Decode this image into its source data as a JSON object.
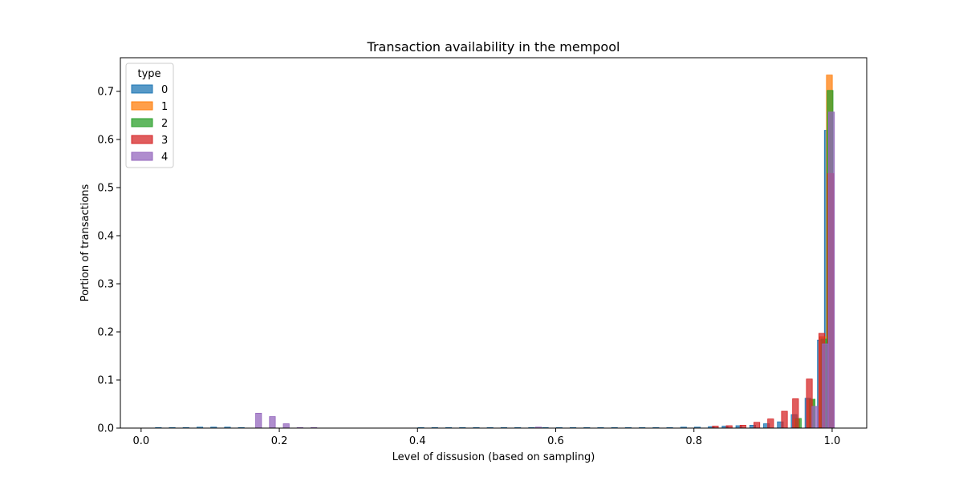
{
  "chart_data": {
    "type": "bar",
    "title": "Transaction availability in the mempool",
    "xlabel": "Level of dissusion (based on sampling)",
    "ylabel": "Portion of transactions",
    "xlim": [
      -0.03,
      1.05
    ],
    "ylim": [
      0,
      0.77
    ],
    "xticks": [
      0.0,
      0.2,
      0.4,
      0.6,
      0.8,
      1.0
    ],
    "xtick_labels": [
      "0.0",
      "0.2",
      "0.4",
      "0.6",
      "0.8",
      "1.0"
    ],
    "yticks": [
      0.0,
      0.1,
      0.2,
      0.3,
      0.4,
      0.5,
      0.6,
      0.7
    ],
    "ytick_labels": [
      "0.0",
      "0.1",
      "0.2",
      "0.3",
      "0.4",
      "0.5",
      "0.6",
      "0.7"
    ],
    "grid": false,
    "legend": {
      "title": "type",
      "placement": "top-left"
    },
    "series": [
      {
        "name": "0",
        "color": "#1f77b4",
        "x": [
          0.025,
          0.045,
          0.065,
          0.085,
          0.105,
          0.125,
          0.145,
          0.405,
          0.425,
          0.445,
          0.465,
          0.485,
          0.505,
          0.525,
          0.545,
          0.565,
          0.585,
          0.605,
          0.625,
          0.645,
          0.665,
          0.685,
          0.705,
          0.725,
          0.745,
          0.765,
          0.785,
          0.805,
          0.825,
          0.845,
          0.865,
          0.885,
          0.905,
          0.925,
          0.945,
          0.965,
          0.983,
          0.993
        ],
        "values": [
          0.001,
          0.001,
          0.001,
          0.002,
          0.002,
          0.002,
          0.001,
          0.001,
          0.001,
          0.001,
          0.001,
          0.001,
          0.001,
          0.001,
          0.001,
          0.001,
          0.001,
          0.001,
          0.001,
          0.001,
          0.001,
          0.001,
          0.001,
          0.001,
          0.001,
          0.001,
          0.002,
          0.002,
          0.003,
          0.004,
          0.005,
          0.006,
          0.009,
          0.013,
          0.028,
          0.062,
          0.183,
          0.619
        ]
      },
      {
        "name": "1",
        "color": "#ff7f0e",
        "x": [
          0.949,
          0.969,
          0.986,
          0.996
        ],
        "values": [
          0.018,
          0.058,
          0.19,
          0.734
        ]
      },
      {
        "name": "2",
        "color": "#2ca02c",
        "x": [
          0.951,
          0.971,
          0.988,
          0.997
        ],
        "values": [
          0.02,
          0.06,
          0.185,
          0.702
        ]
      },
      {
        "name": "3",
        "color": "#d62728",
        "x": [
          0.831,
          0.851,
          0.871,
          0.891,
          0.911,
          0.931,
          0.947,
          0.967,
          0.985,
          0.998
        ],
        "values": [
          0.004,
          0.005,
          0.006,
          0.012,
          0.019,
          0.035,
          0.061,
          0.102,
          0.197,
          0.529
        ]
      },
      {
        "name": "4",
        "color": "#9467bd",
        "x": [
          0.17,
          0.19,
          0.21,
          0.23,
          0.25,
          0.575,
          0.975,
          0.99,
          0.999
        ],
        "values": [
          0.031,
          0.024,
          0.009,
          0.001,
          0.001,
          0.002,
          0.045,
          0.175,
          0.657
        ]
      }
    ]
  }
}
